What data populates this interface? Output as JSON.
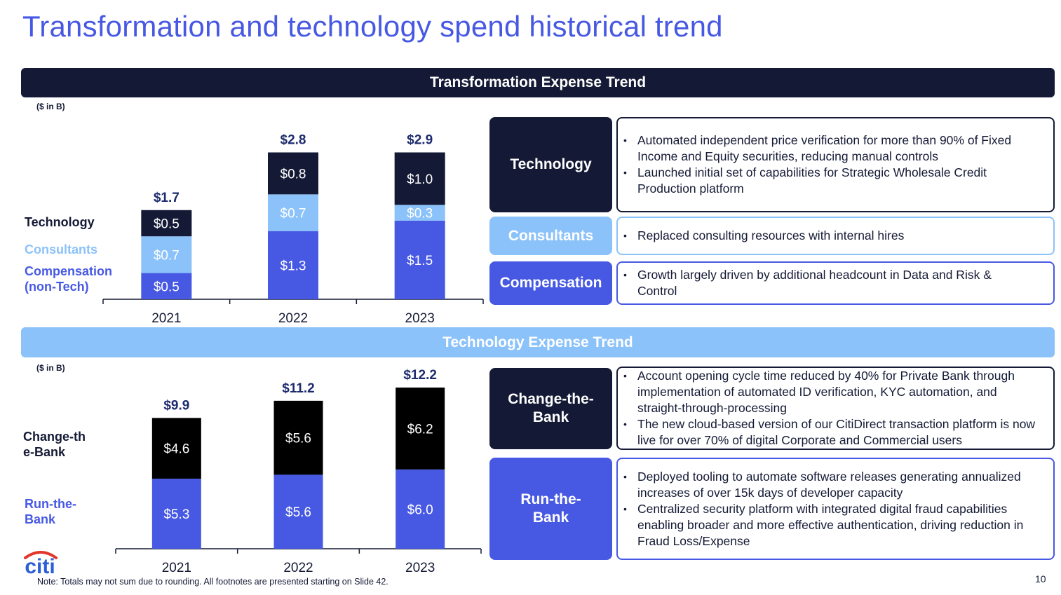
{
  "page": {
    "title": "Transformation and technology spend historical trend",
    "page_number": "10",
    "note": "Note:  Totals may not sum due to rounding. All footnotes are presented starting on Slide 42.",
    "logo_text": "citi"
  },
  "colors": {
    "title": "#4759e3",
    "dark_navy": "#141a35",
    "light_blue": "#8bc2f9",
    "royal_blue": "#4759e3",
    "black": "#000000",
    "total_label": "#1c2b6e",
    "logo_arc": "#e2352b"
  },
  "transformation": {
    "band_title": "Transformation Expense Trend",
    "units": "($ in B)",
    "legend": [
      {
        "label": "Technology",
        "color": "#141a35"
      },
      {
        "label": "Consultants",
        "color": "#8bc2f9"
      },
      {
        "label": "Compensation (non-Tech)",
        "color": "#4759e3"
      }
    ],
    "categories": [
      {
        "label": "Technology",
        "bullets": [
          "Automated independent price verification for more than 90% of Fixed Income and Equity securities, reducing manual controls",
          "Launched initial set of capabilities for Strategic Wholesale Credit Production platform"
        ]
      },
      {
        "label": "Consultants",
        "bullets": [
          "Replaced consulting resources with internal hires"
        ]
      },
      {
        "label": "Compensation",
        "bullets": [
          "Growth largely driven by additional headcount in Data and Risk & Control"
        ]
      }
    ]
  },
  "technology": {
    "band_title": "Technology Expense Trend",
    "units": "($ in B)",
    "legend": [
      {
        "label": "Change-the-Bank",
        "color": "#141a35"
      },
      {
        "label": "Run-the-Bank",
        "color": "#4759e3"
      }
    ],
    "categories": [
      {
        "label": "Change-the-Bank",
        "bullets": [
          "Account opening cycle time reduced by 40% for Private Bank through implementation of automated ID verification, KYC automation, and straight-through-processing",
          "The new cloud-based version of our CitiDirect transaction platform is now live for over 70% of digital Corporate and Commercial users"
        ]
      },
      {
        "label": "Run-the-Bank",
        "bullets": [
          "Deployed tooling to automate software releases generating annualized increases of over 15k days of developer capacity",
          "Centralized security platform with integrated digital fraud capabilities enabling broader and more effective authentication, driving reduction in Fraud Loss/Expense"
        ]
      }
    ]
  },
  "chart_data": [
    {
      "type": "bar",
      "stacked": true,
      "title": "Transformation Expense Trend",
      "units": "$ in B",
      "xlabel": "",
      "ylabel": "",
      "categories": [
        "2021",
        "2022",
        "2023"
      ],
      "series": [
        {
          "name": "Compensation (non-Tech)",
          "color": "#4759e3",
          "values": [
            0.5,
            1.3,
            1.5
          ],
          "labels": [
            "$0.5",
            "$1.3",
            "$1.5"
          ]
        },
        {
          "name": "Consultants",
          "color": "#8bc2f9",
          "values": [
            0.7,
            0.7,
            0.3
          ],
          "labels": [
            "$0.7",
            "$0.7",
            "$0.3"
          ]
        },
        {
          "name": "Technology",
          "color": "#141a35",
          "values": [
            0.5,
            0.8,
            1.0
          ],
          "labels": [
            "$0.5",
            "$0.8",
            "$1.0"
          ]
        }
      ],
      "totals": [
        1.7,
        2.8,
        2.9
      ],
      "total_labels": [
        "$1.7",
        "$2.8",
        "$2.9"
      ],
      "ylim": [
        0,
        2.9
      ],
      "grid": false,
      "legend_position": "left"
    },
    {
      "type": "bar",
      "stacked": true,
      "title": "Technology Expense Trend",
      "units": "$ in B",
      "xlabel": "",
      "ylabel": "",
      "categories": [
        "2021",
        "2022",
        "2023"
      ],
      "series": [
        {
          "name": "Run-the-Bank",
          "color": "#4759e3",
          "values": [
            5.3,
            5.6,
            6.0
          ],
          "labels": [
            "$5.3",
            "$5.6",
            "$6.0"
          ]
        },
        {
          "name": "Change-the-Bank",
          "color": "#000000",
          "values": [
            4.6,
            5.6,
            6.2
          ],
          "labels": [
            "$4.6",
            "$5.6",
            "$6.2"
          ]
        }
      ],
      "totals": [
        9.9,
        11.2,
        12.2
      ],
      "total_labels": [
        "$9.9",
        "$11.2",
        "$12.2"
      ],
      "ylim": [
        0,
        12.2
      ],
      "grid": false,
      "legend_position": "left"
    }
  ]
}
